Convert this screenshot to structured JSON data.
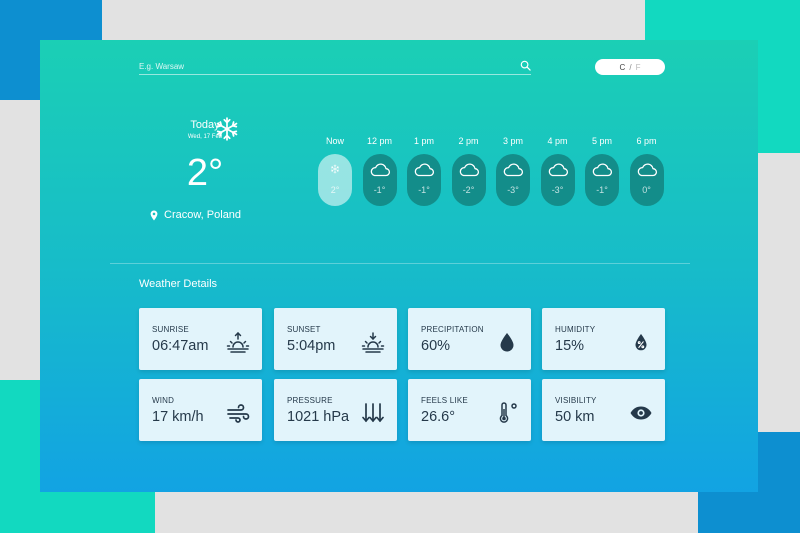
{
  "search": {
    "placeholder": "E.g. Warsaw"
  },
  "units": {
    "celsius": "C",
    "separator": "/",
    "fahrenheit": "F"
  },
  "today": {
    "label": "Today",
    "date": "Wed, 17 Feb",
    "temperature": "2°",
    "location": "Cracow, Poland",
    "icon": "snowflake-icon"
  },
  "hourly": [
    {
      "time": "Now",
      "temp": "2°",
      "icon": "snowflake-icon",
      "active": true
    },
    {
      "time": "12 pm",
      "temp": "-1°",
      "icon": "cloud-icon",
      "active": false
    },
    {
      "time": "1 pm",
      "temp": "-1°",
      "icon": "cloud-icon",
      "active": false
    },
    {
      "time": "2 pm",
      "temp": "-2°",
      "icon": "cloud-icon",
      "active": false
    },
    {
      "time": "3 pm",
      "temp": "-3°",
      "icon": "cloud-icon",
      "active": false
    },
    {
      "time": "4 pm",
      "temp": "-3°",
      "icon": "cloud-icon",
      "active": false
    },
    {
      "time": "5 pm",
      "temp": "-1°",
      "icon": "cloud-icon",
      "active": false
    },
    {
      "time": "6 pm",
      "temp": "0°",
      "icon": "cloud-icon",
      "active": false
    }
  ],
  "details": {
    "title": "Weather Details",
    "cards": [
      {
        "label": "SUNRISE",
        "value": "06:47am",
        "icon": "sunrise-icon"
      },
      {
        "label": "SUNSET",
        "value": "5:04pm",
        "icon": "sunset-icon"
      },
      {
        "label": "PRECIPITATION",
        "value": "60%",
        "icon": "raindrop-icon"
      },
      {
        "label": "HUMIDITY",
        "value": "15%",
        "icon": "humidity-icon"
      },
      {
        "label": "WIND",
        "value": "17 km/h",
        "icon": "wind-icon"
      },
      {
        "label": "PRESSURE",
        "value": "1021 hPa",
        "icon": "pressure-icon"
      },
      {
        "label": "FEELS LIKE",
        "value": "26.6°",
        "icon": "thermometer-icon"
      },
      {
        "label": "VISIBILITY",
        "value": "50 km",
        "icon": "eye-icon"
      }
    ]
  },
  "colors": {
    "gradient_top": "#1bcfb5",
    "gradient_bottom": "#12a3e3",
    "pill": "#138d8a",
    "card_bg": "#e2f4fb",
    "card_text": "#25394a"
  }
}
